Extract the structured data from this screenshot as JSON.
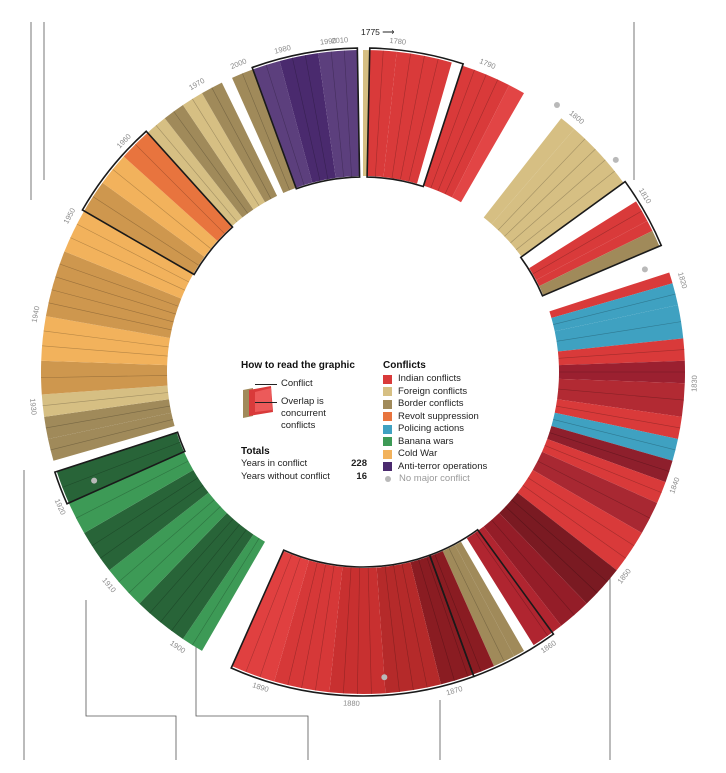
{
  "chart_data": {
    "type": "radial-timeline",
    "start_label": "1775 ⟶",
    "decade_labels": [
      "1780",
      "1790",
      "1800",
      "1810",
      "1820",
      "1830",
      "1840",
      "1850",
      "1860",
      "1870",
      "1880",
      "1890",
      "1900",
      "1910",
      "1920",
      "1930",
      "1940",
      "1950",
      "1960",
      "1970",
      "1980",
      "1990",
      "2000",
      "2010"
    ],
    "categories": [
      {
        "name": "Indian conflicts",
        "color": "#d93a3a"
      },
      {
        "name": "Foreign conflicts",
        "color": "#d6bf83"
      },
      {
        "name": "Border conflicts",
        "color": "#a08a5a"
      },
      {
        "name": "Revolt suppression",
        "color": "#e8743e"
      },
      {
        "name": "Policing actions",
        "color": "#3fa1c1"
      },
      {
        "name": "Banana wars",
        "color": "#3d9a56"
      },
      {
        "name": "Cold War",
        "color": "#f2b25c"
      },
      {
        "name": "Anti-terror operations",
        "color": "#4a2a6e"
      }
    ],
    "no_conflict_label": "No major conflict",
    "totals": {
      "years_in_conflict": 228,
      "years_without_conflict": 16
    }
  },
  "howto": {
    "title": "How to read the graphic",
    "conflict": "Conflict",
    "overlap": "Overlap is concurrent conflicts"
  },
  "legend_title": "Conflicts",
  "totals_title": "Totals",
  "totals_labels": {
    "in_conflict": "Years in conflict",
    "without_conflict": "Years without conflict"
  },
  "totals_values": {
    "in_conflict": "228",
    "without_conflict": "16"
  }
}
